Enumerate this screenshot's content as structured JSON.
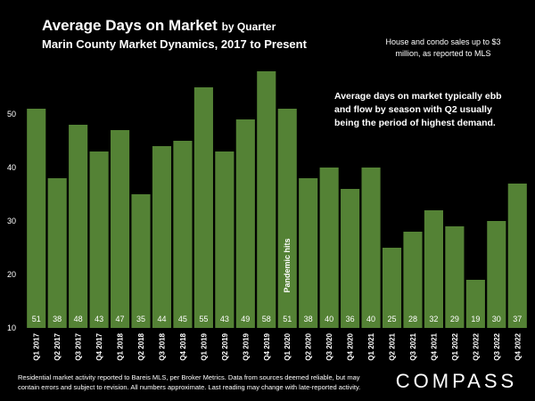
{
  "chart_data": {
    "type": "bar",
    "title": "Average Days on Market",
    "title_suffix": "by Quarter",
    "subtitle": "Marin County Market Dynamics, 2017 to Present",
    "note": [
      "House and condo sales up to $3",
      "million, as reported to MLS"
    ],
    "annotation": [
      "Average days on market typically ebb",
      "and flow by season with Q2 usually",
      "being the period of highest demand."
    ],
    "event_label": "Pandemic hits",
    "event_index": 12,
    "footer": [
      "Residential market activity reported to Bareis MLS, per Broker Metrics. Data from sources deemed reliable, but may",
      "contain errors and subject to revision. All numbers approximate. Last reading may change with late-reported activity."
    ],
    "brand": "COMPASS",
    "categories": [
      "Q1 2017",
      "Q2 2017",
      "Q3 2017",
      "Q4 2017",
      "Q1 2018",
      "Q2 2018",
      "Q3 2018",
      "Q4 2018",
      "Q1 2019",
      "Q2 2019",
      "Q3 2019",
      "Q4 2019",
      "Q1 2020",
      "Q2 2020",
      "Q3 2020",
      "Q4 2020",
      "Q1 2021",
      "Q2 2021",
      "Q3 2021",
      "Q4 2021",
      "Q1 2022",
      "Q2 2022",
      "Q3 2022",
      "Q4 2022"
    ],
    "values": [
      51,
      38,
      48,
      43,
      47,
      35,
      44,
      45,
      55,
      43,
      49,
      58,
      51,
      38,
      40,
      36,
      40,
      25,
      28,
      32,
      29,
      19,
      30,
      37
    ],
    "color": "#548235",
    "ylim": [
      10,
      60
    ],
    "yticks": [
      10,
      20,
      30,
      40,
      50
    ]
  }
}
